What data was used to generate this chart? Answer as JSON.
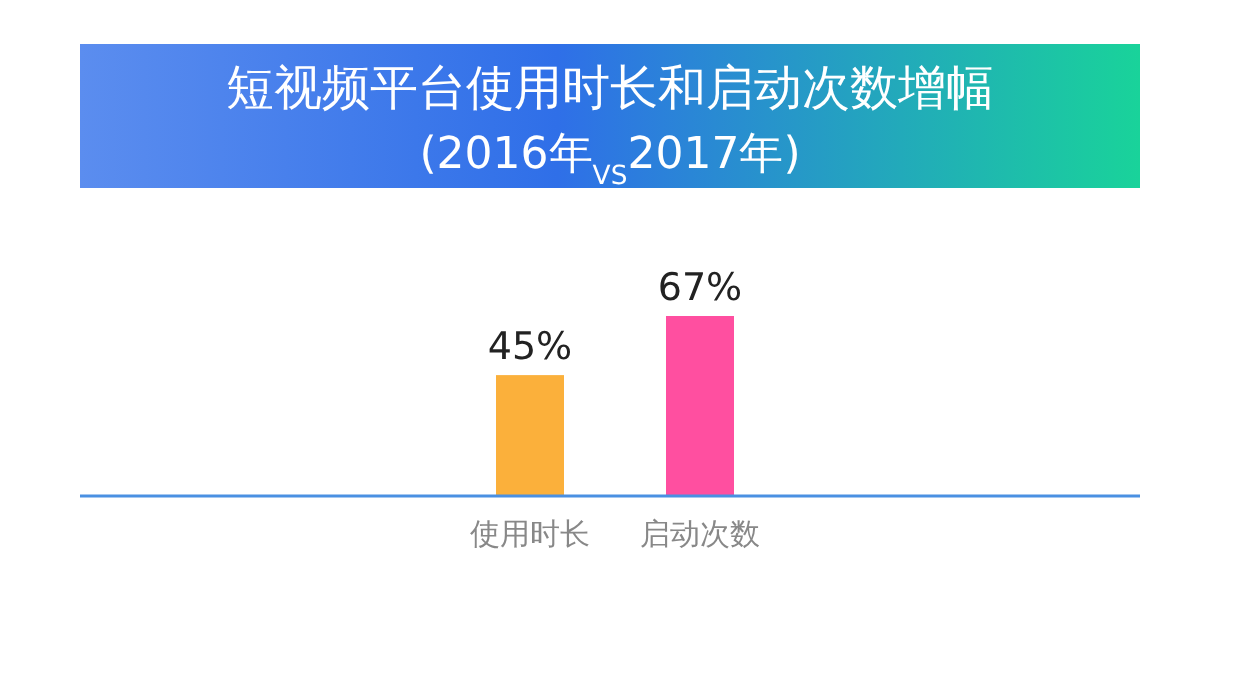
{
  "chart_data": {
    "type": "bar",
    "title": "短视频平台使用时长和启动次数增幅",
    "subtitle": "(2016年$_{VS}$2017年)",
    "categories": [
      "使用时长",
      "启动次数"
    ],
    "values": [
      45,
      67
    ],
    "colors": [
      "#fbb03b",
      "#ff4fa0"
    ],
    "data_labels": true,
    "value_labels": [
      "45%",
      "67%"
    ]
  }
}
